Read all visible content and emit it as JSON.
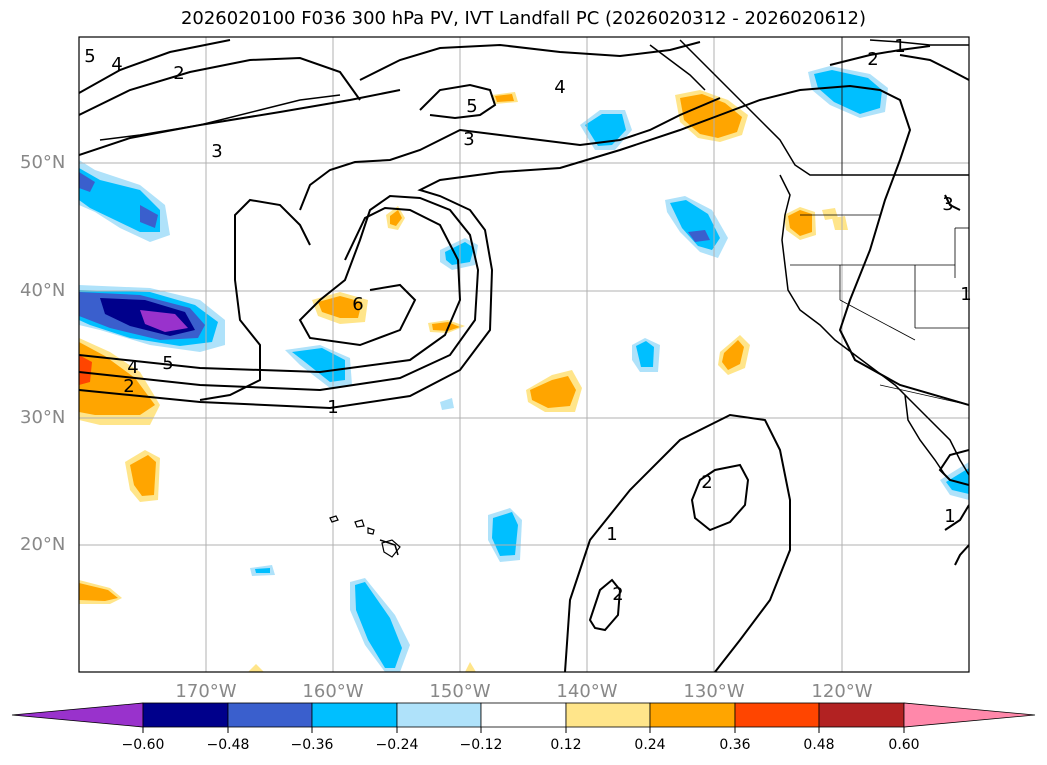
{
  "title": "2026020100 F036 300 hPa PV, IVT Landfall PC (2026020312 - 2026020612)",
  "lat_labels": [
    "50°N",
    "40°N",
    "30°N",
    "20°N"
  ],
  "lon_labels": [
    "170°W",
    "160°W",
    "150°W",
    "140°W",
    "130°W",
    "120°W"
  ],
  "contour_labels": [
    "5",
    "4",
    "2",
    "3",
    "5",
    "3",
    "4",
    "6",
    "5",
    "4",
    "2",
    "1",
    "2",
    "1",
    "2",
    "1",
    "2",
    "1",
    "3",
    "1"
  ],
  "colorbar": {
    "ticks": [
      "−0.60",
      "−0.48",
      "−0.36",
      "−0.24",
      "−0.12",
      "0.12",
      "0.24",
      "0.36",
      "0.48",
      "0.60"
    ],
    "colors": [
      "#9932cc",
      "#00008b",
      "#3a5fcd",
      "#00bfff",
      "#afe2fa",
      "#ffffff",
      "#ffe58a",
      "#ffa500",
      "#ff4500",
      "#b22222",
      "#ff88aa"
    ]
  },
  "colors": {
    "frame": "#000000",
    "grid": "#b0b0b0",
    "axis_text": "#888888"
  }
}
